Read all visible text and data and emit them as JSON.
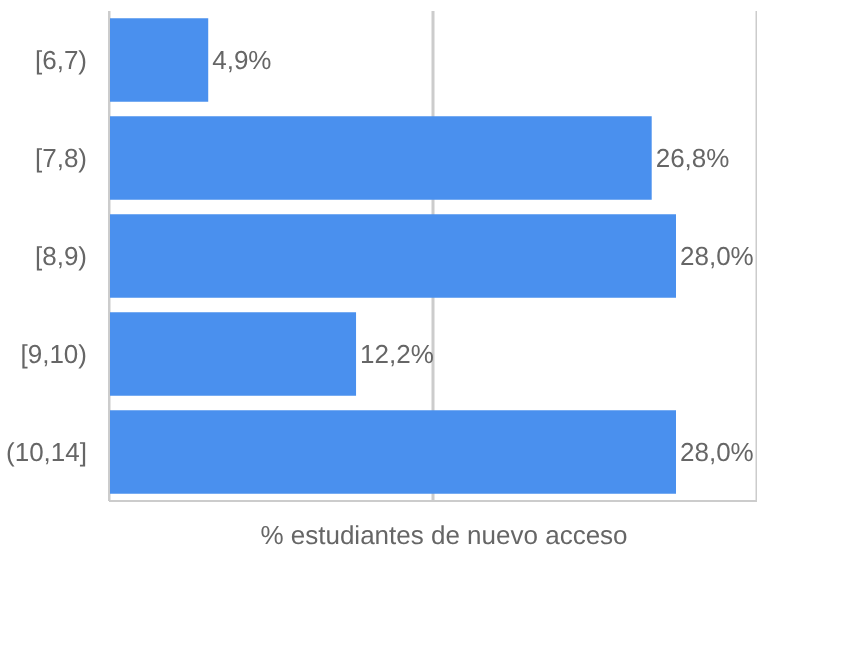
{
  "chart_data": {
    "type": "bar",
    "orientation": "horizontal",
    "categories": [
      "[6,7)",
      "[7,8)",
      "[8,9)",
      "[9,10)",
      "(10,14]"
    ],
    "series": [
      {
        "name": "% estudiantes de nuevo acceso",
        "color": "#4a90ee",
        "values": [
          4.9,
          26.8,
          28.0,
          12.2,
          28.0
        ],
        "value_labels": [
          "4,9%",
          "26,8%",
          "28,0%",
          "12,2%",
          "28,0%"
        ]
      }
    ],
    "xlim": [
      0,
      32
    ],
    "xticks": [
      {
        "value": 0,
        "label": null
      },
      {
        "value": 16,
        "label": null
      },
      {
        "value": 32,
        "label": null
      }
    ],
    "tick_labels": "y",
    "grid": "x",
    "legend": "bottom"
  }
}
